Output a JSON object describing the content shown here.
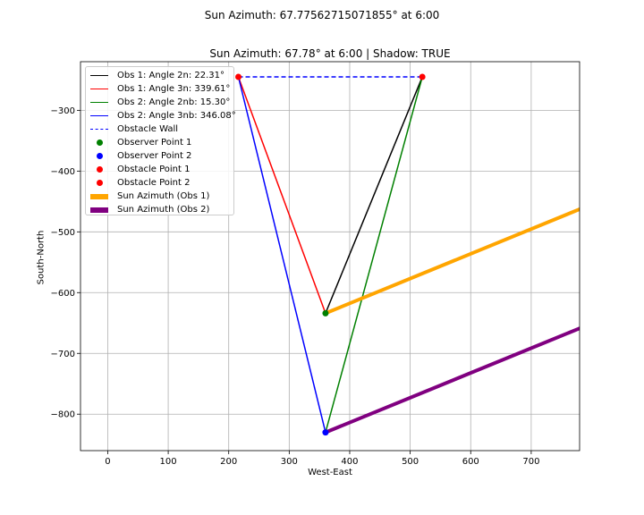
{
  "figure": {
    "suptitle": "Sun Azimuth: 67.77562715071855° at 6:00"
  },
  "chart_data": {
    "type": "line",
    "title": "Sun Azimuth: 67.78° at 6:00 | Shadow: TRUE",
    "xlabel": "West-East",
    "ylabel": "South-North",
    "xlim": [
      -45,
      780
    ],
    "ylim": [
      -860,
      -220
    ],
    "xticks": [
      0,
      100,
      200,
      300,
      400,
      500,
      600,
      700
    ],
    "yticks": [
      -300,
      -400,
      -500,
      -600,
      -700,
      -800
    ],
    "grid": true,
    "legend_position": "top-left",
    "lines": [
      {
        "name": "Obs 1: Angle 2n: 22.31°",
        "color": "#000000",
        "style": "solid",
        "width": 1.5,
        "x": [
          360,
          520
        ],
        "y": [
          -634,
          -245
        ]
      },
      {
        "name": "Obs 1: Angle 3n: 339.61°",
        "color": "#ff0000",
        "style": "solid",
        "width": 1.5,
        "x": [
          360,
          216
        ],
        "y": [
          -634,
          -245
        ]
      },
      {
        "name": "Obs 2: Angle 2nb: 15.30°",
        "color": "#008000",
        "style": "solid",
        "width": 1.5,
        "x": [
          360,
          520
        ],
        "y": [
          -830,
          -245
        ]
      },
      {
        "name": "Obs 2: Angle 3nb: 346.08°",
        "color": "#0000ff",
        "style": "solid",
        "width": 1.5,
        "x": [
          360,
          216
        ],
        "y": [
          -830,
          -245
        ]
      },
      {
        "name": "Obstacle Wall",
        "color": "#0000ff",
        "style": "dashed",
        "width": 1.5,
        "x": [
          216,
          520
        ],
        "y": [
          -245,
          -245
        ]
      }
    ],
    "points": [
      {
        "name": "Observer Point 1",
        "color": "#008000",
        "x": 360,
        "y": -634
      },
      {
        "name": "Observer Point 2",
        "color": "#0000ff",
        "x": 360,
        "y": -830
      },
      {
        "name": "Obstacle Point 1",
        "color": "#ff0000",
        "x": 216,
        "y": -245
      },
      {
        "name": "Obstacle Point 2",
        "color": "#ff0000",
        "x": 520,
        "y": -245
      }
    ],
    "rays": [
      {
        "name": "Sun Azimuth (Obs 1)",
        "color": "#ffa500",
        "width": 4,
        "x": [
          360,
          1140
        ],
        "y": [
          -634,
          -316
        ]
      },
      {
        "name": "Sun Azimuth (Obs 2)",
        "color": "#800080",
        "width": 4,
        "x": [
          360,
          1140
        ],
        "y": [
          -830,
          -512
        ]
      }
    ]
  },
  "legend": {
    "entries": [
      {
        "label": "Obs 1: Angle 2n: 22.31°",
        "kind": "line",
        "color": "#000000"
      },
      {
        "label": "Obs 1: Angle 3n: 339.61°",
        "kind": "line",
        "color": "#ff0000"
      },
      {
        "label": "Obs 2: Angle 2nb: 15.30°",
        "kind": "line",
        "color": "#008000"
      },
      {
        "label": "Obs 2: Angle 3nb: 346.08°",
        "kind": "line",
        "color": "#0000ff"
      },
      {
        "label": "Obstacle Wall",
        "kind": "dash",
        "color": "#0000ff"
      },
      {
        "label": "Observer Point 1",
        "kind": "dot",
        "color": "#008000"
      },
      {
        "label": "Observer Point 2",
        "kind": "dot",
        "color": "#0000ff"
      },
      {
        "label": "Obstacle Point 1",
        "kind": "dot",
        "color": "#ff0000"
      },
      {
        "label": "Obstacle Point 2",
        "kind": "dot",
        "color": "#ff0000"
      },
      {
        "label": "Sun Azimuth (Obs 1)",
        "kind": "thick",
        "color": "#ffa500"
      },
      {
        "label": "Sun Azimuth (Obs 2)",
        "kind": "thick",
        "color": "#800080"
      }
    ]
  }
}
